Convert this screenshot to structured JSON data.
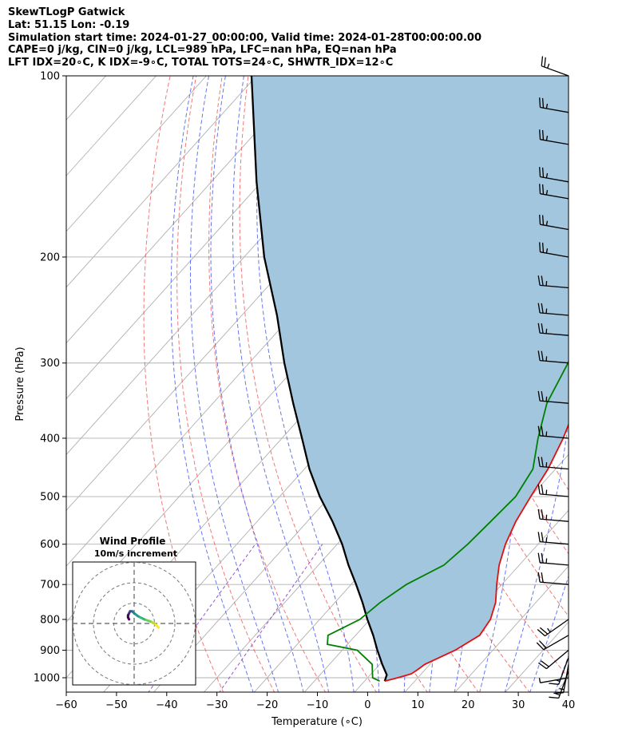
{
  "title_lines": [
    "SkewTLogP Gatwick",
    "Lat: 51.15   Lon: -0.19",
    "Simulation start time: 2024-01-27_00:00:00, Valid time: 2024-01-28T00:00:00.00",
    "CAPE=0 j/kg, CIN=0 j/kg, LCL=989 hPa, LFC=nan hPa, EQ=nan hPa",
    "LFT IDX=20∘C, K IDX=-9∘C, TOTAL TOTS=24∘C, SHWTR_IDX=12∘C"
  ],
  "colors": {
    "temperature": "#e01010",
    "dewpoint": "#008000",
    "parcel": "#000000",
    "cape_shade": "#a3c6df",
    "dry_adiabat": "#f06060",
    "moist_adiabat": "#4a5ef0",
    "mixing_ratio": "#8a40c8",
    "isotherm_grid": "#b0b0b0"
  },
  "chart_data": [
    {
      "type": "line",
      "subtype": "skew-T log-P",
      "xlabel": "Temperature (∘C)",
      "ylabel": "Pressure (hPa)",
      "xlim": [
        -60,
        40
      ],
      "ylim": [
        1040,
        100
      ],
      "y_scale": "log",
      "x_ticks": [
        -60,
        -50,
        -40,
        -30,
        -20,
        -10,
        0,
        10,
        20,
        30,
        40
      ],
      "x_tick_labels": [
        "−60",
        "−50",
        "−40",
        "−30",
        "−20",
        "−10",
        "0",
        "10",
        "20",
        "30",
        "40"
      ],
      "y_ticks": [
        1000,
        900,
        800,
        700,
        600,
        500,
        400,
        300,
        200,
        100
      ],
      "grid": true,
      "series": [
        {
          "key": "temperature",
          "points": [
            [
              1013,
              4
            ],
            [
              1000,
              6
            ],
            [
              985,
              8
            ],
            [
              970,
              8.5
            ],
            [
              950,
              9
            ],
            [
              900,
              12.5
            ],
            [
              850,
              14.7
            ],
            [
              800,
              14
            ],
            [
              750,
              12
            ],
            [
              700,
              9
            ],
            [
              650,
              6
            ],
            [
              600,
              3.5
            ],
            [
              550,
              1.5
            ],
            [
              500,
              0
            ],
            [
              450,
              -1.5
            ],
            [
              400,
              -4
            ],
            [
              350,
              -7.5
            ],
            [
              300,
              -12
            ],
            [
              270,
              -15
            ],
            [
              250,
              -17
            ],
            [
              230,
              -19
            ],
            [
              210,
              -20
            ],
            [
              200,
              -20
            ],
            [
              190,
              -19
            ],
            [
              180,
              -18
            ],
            [
              170,
              -17
            ],
            [
              160,
              -16
            ],
            [
              150,
              -16
            ],
            [
              140,
              -15
            ],
            [
              130,
              -13
            ],
            [
              120,
              -11
            ],
            [
              110,
              -11
            ],
            [
              100,
              -13
            ]
          ]
        },
        {
          "key": "dewpoint",
          "points": [
            [
              1013,
              3
            ],
            [
              1000,
              1
            ],
            [
              980,
              0
            ],
            [
              950,
              -1.5
            ],
            [
              900,
              -7
            ],
            [
              880,
              -14
            ],
            [
              850,
              -15.5
            ],
            [
              800,
              -12
            ],
            [
              750,
              -11
            ],
            [
              700,
              -9
            ],
            [
              650,
              -5
            ],
            [
              600,
              -4
            ],
            [
              550,
              -3.5
            ],
            [
              500,
              -3
            ],
            [
              450,
              -4.5
            ],
            [
              400,
              -9
            ],
            [
              350,
              -13.5
            ],
            [
              300,
              -16.5
            ],
            [
              280,
              -18.5
            ],
            [
              250,
              -22
            ],
            [
              230,
              -25
            ],
            [
              210,
              -28
            ],
            [
              200,
              -29
            ],
            [
              180,
              -28
            ],
            [
              170,
              -26
            ],
            [
              160,
              -23
            ],
            [
              150,
              -20
            ],
            [
              140,
              -18.5
            ],
            [
              130,
              -22
            ],
            [
              120,
              -27
            ],
            [
              110,
              -27
            ],
            [
              100,
              -26
            ]
          ]
        },
        {
          "key": "parcel",
          "points": [
            [
              1013,
              4
            ],
            [
              989,
              3.3
            ],
            [
              950,
              0.5
            ],
            [
              900,
              -3
            ],
            [
              850,
              -6.5
            ],
            [
              800,
              -10.5
            ],
            [
              750,
              -14.5
            ],
            [
              700,
              -19
            ],
            [
              650,
              -24
            ],
            [
              600,
              -29
            ],
            [
              550,
              -35
            ],
            [
              500,
              -42
            ],
            [
              450,
              -49
            ],
            [
              400,
              -56
            ],
            [
              350,
              -64
            ],
            [
              300,
              -73
            ],
            [
              250,
              -83
            ],
            [
              200,
              -96
            ],
            [
              150,
              -111
            ],
            [
              100,
              -131
            ]
          ]
        }
      ],
      "wind_barbs": {
        "pressures": [
          1000,
          975,
          950,
          925,
          900,
          850,
          800,
          700,
          650,
          600,
          550,
          500,
          450,
          400,
          350,
          300,
          270,
          250,
          225,
          200,
          180,
          160,
          150,
          130,
          115,
          100
        ],
        "speed_kt": [
          5,
          15,
          15,
          15,
          20,
          20,
          25,
          20,
          25,
          25,
          25,
          25,
          25,
          25,
          25,
          25,
          25,
          25,
          25,
          25,
          25,
          25,
          25,
          25,
          25,
          25
        ],
        "direction_deg": [
          260,
          200,
          190,
          200,
          230,
          240,
          235,
          275,
          275,
          275,
          275,
          275,
          275,
          275,
          275,
          275,
          275,
          275,
          275,
          280,
          280,
          280,
          280,
          280,
          280,
          290
        ]
      }
    },
    {
      "type": "line",
      "subtype": "hodograph",
      "title": "Wind Profile",
      "subtitle": "10m/s increment",
      "u": [
        12,
        10,
        8,
        5,
        2,
        0,
        -1,
        -2,
        -2.5,
        -3,
        -3,
        -2.5
      ],
      "v": [
        -2,
        0,
        1,
        2,
        3.5,
        5,
        6,
        6,
        5,
        4,
        3,
        2
      ]
    }
  ]
}
